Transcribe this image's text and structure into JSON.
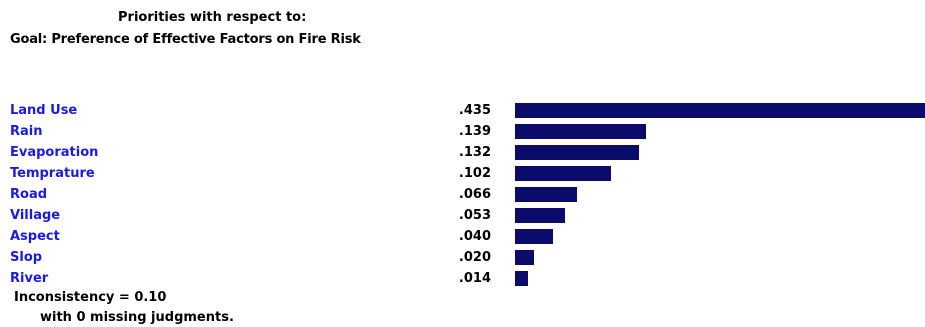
{
  "header": {
    "line1": "Priorities with respect to:",
    "line2": "Goal: Preference of Effective Factors on Fire Risk"
  },
  "chart_data": {
    "type": "bar",
    "orientation": "horizontal",
    "categories": [
      "Land Use",
      "Rain",
      "Evaporation",
      "Temprature",
      "Road",
      "Village",
      "Aspect",
      "Slop",
      "River"
    ],
    "values": [
      0.435,
      0.139,
      0.132,
      0.102,
      0.066,
      0.053,
      0.04,
      0.02,
      0.014
    ],
    "value_labels": [
      ".435",
      ".139",
      ".132",
      ".102",
      ".066",
      ".053",
      ".040",
      ".020",
      ".014"
    ],
    "xlim": [
      0,
      0.435
    ],
    "grid": false,
    "legend": "none"
  },
  "footer": {
    "inconsistency": "Inconsistency = 0.10",
    "missing": "with 0  missing judgments."
  },
  "colors": {
    "bar": "#0b0b6b",
    "label": "#1a1ae6",
    "text": "#000000"
  }
}
